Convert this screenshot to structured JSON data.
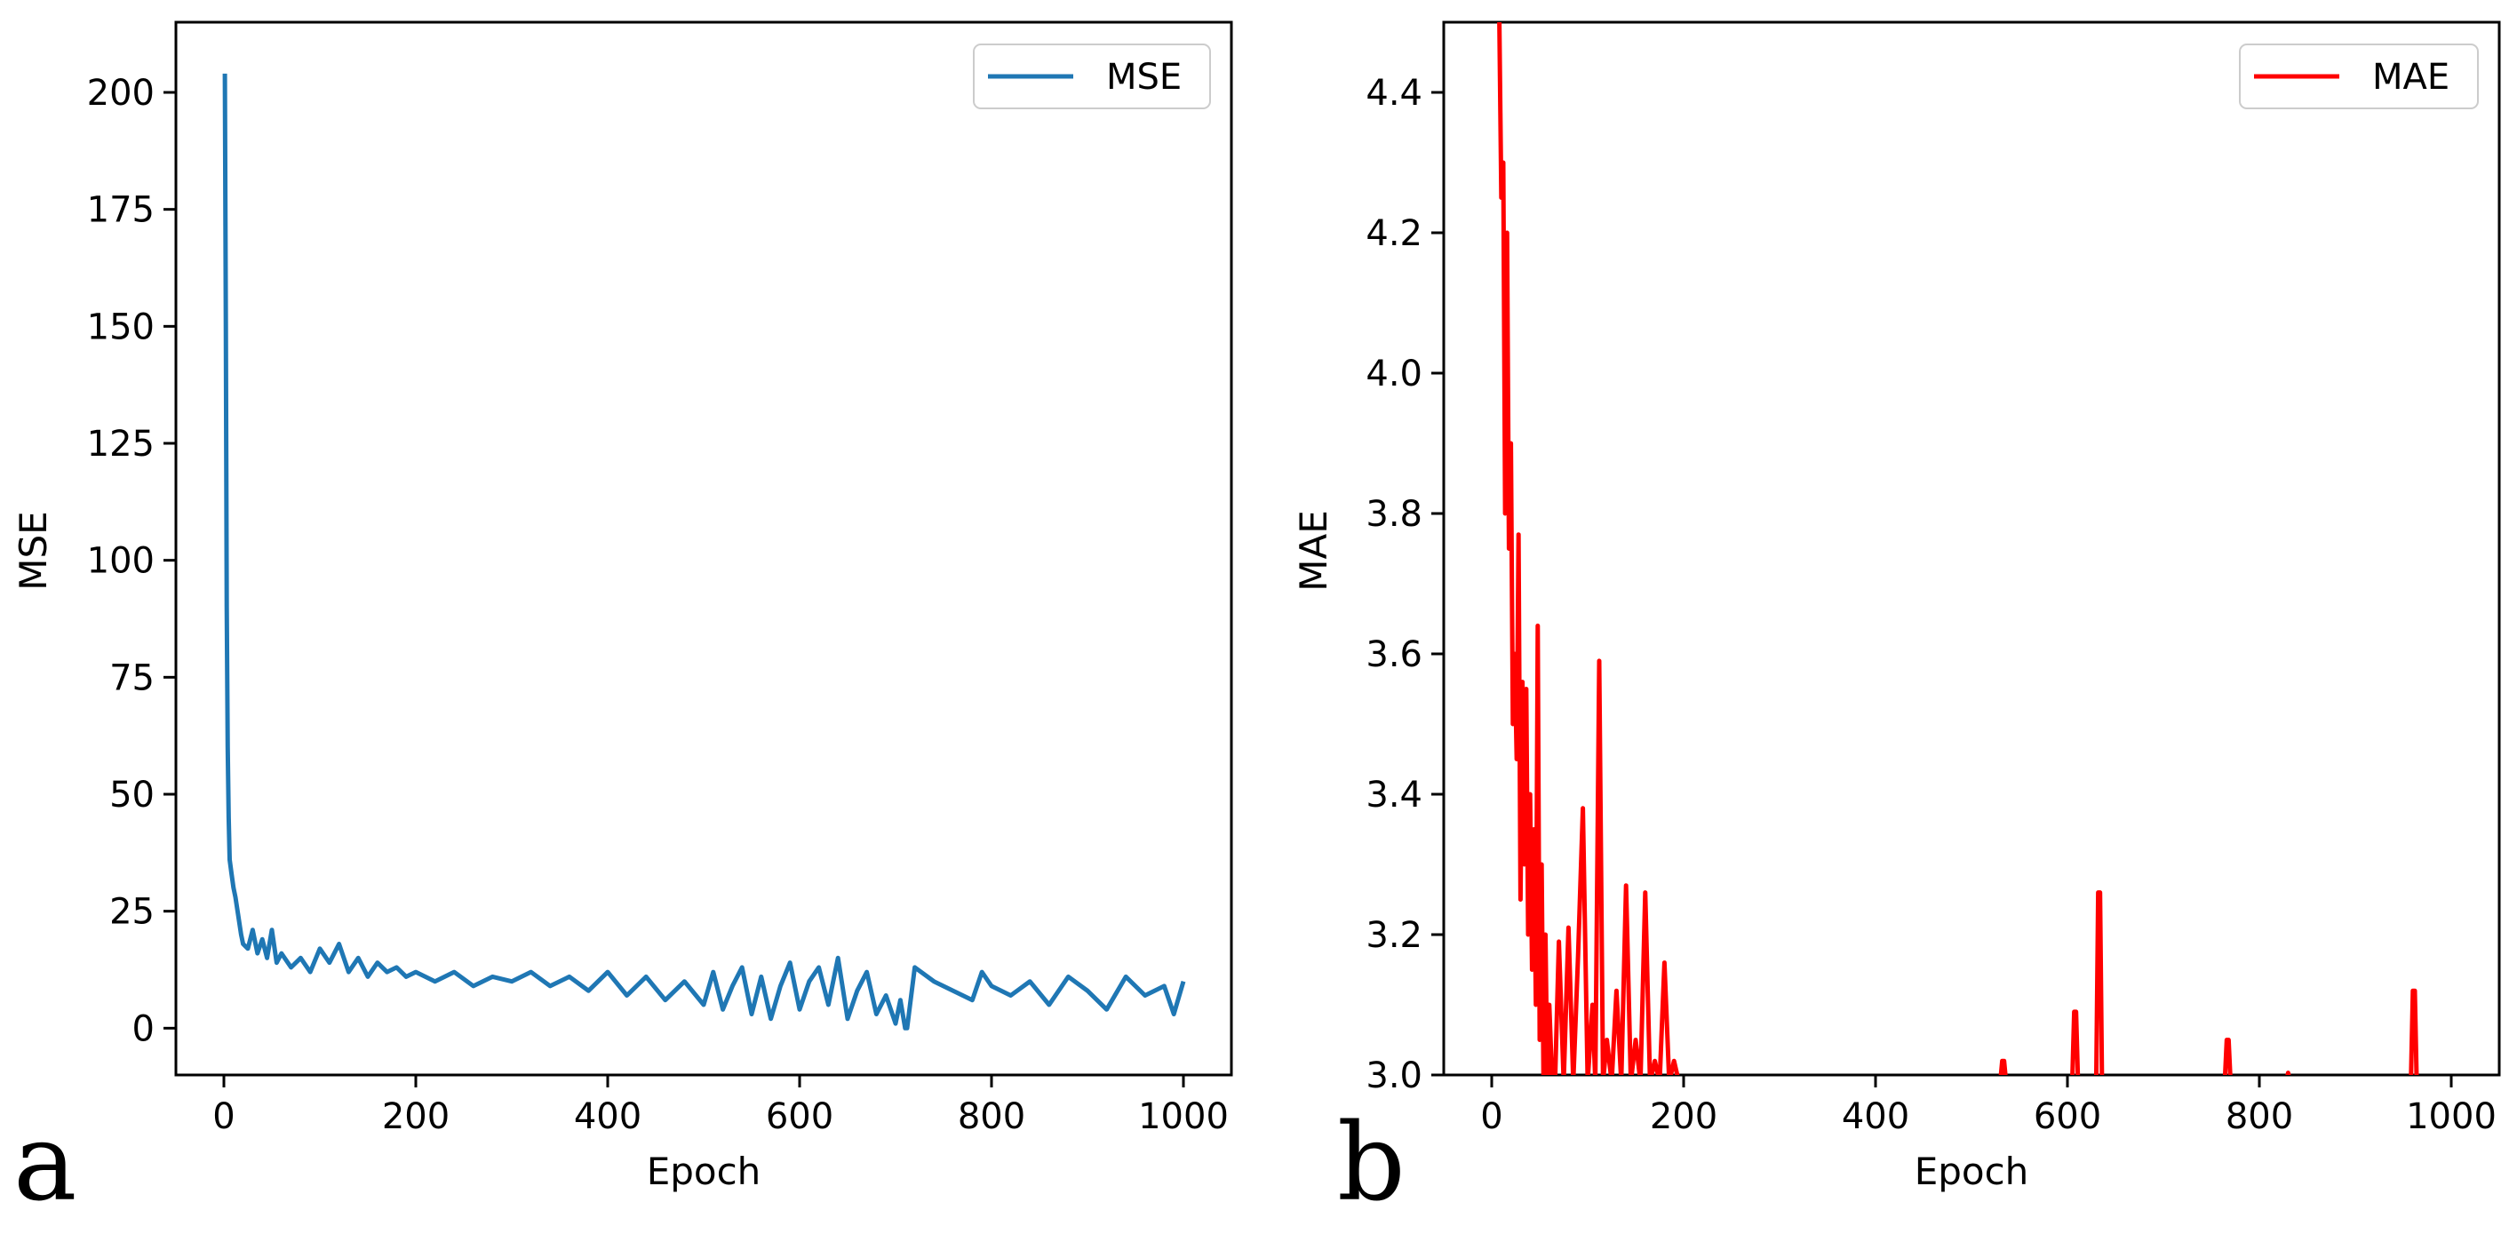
{
  "chart_data": [
    {
      "type": "line",
      "panel_letter": "a",
      "title": "",
      "xlabel": "Epoch",
      "ylabel": "MSE",
      "xlim": [
        -50,
        1050
      ],
      "ylim": [
        -10,
        215
      ],
      "xticks": [
        0,
        200,
        400,
        600,
        800,
        1000
      ],
      "yticks": [
        0,
        25,
        50,
        75,
        100,
        125,
        150,
        175,
        200
      ],
      "legend": {
        "position": "top-right",
        "entries": [
          "MSE"
        ]
      },
      "series": [
        {
          "name": "MSE",
          "color": "#1f77b4",
          "x": [
            1,
            2,
            3,
            4,
            5,
            6,
            8,
            10,
            12,
            15,
            18,
            20,
            25,
            30,
            35,
            40,
            45,
            50,
            55,
            60,
            70,
            80,
            90,
            100,
            110,
            120,
            130,
            140,
            150,
            160,
            170,
            180,
            190,
            200,
            220,
            240,
            260,
            280,
            300,
            320,
            340,
            360,
            380,
            400,
            420,
            440,
            460,
            480,
            500,
            510,
            520,
            530,
            540,
            550,
            560,
            570,
            580,
            590,
            600,
            610,
            620,
            630,
            640,
            650,
            660,
            670,
            680,
            690,
            700,
            705,
            710,
            712,
            720,
            740,
            760,
            780,
            790,
            800,
            820,
            840,
            860,
            880,
            900,
            920,
            940,
            960,
            980,
            990,
            1000
          ],
          "values": [
            204,
            150,
            90,
            60,
            45,
            36,
            33,
            30,
            28,
            24,
            20,
            18,
            17,
            21,
            16,
            19,
            15,
            21,
            14,
            16,
            13,
            15,
            12,
            17,
            14,
            18,
            12,
            15,
            11,
            14,
            12,
            13,
            11,
            12,
            10,
            12,
            9,
            11,
            10,
            12,
            9,
            11,
            8,
            12,
            7,
            11,
            6,
            10,
            5,
            12,
            4,
            9,
            13,
            3,
            11,
            2,
            9,
            14,
            4,
            10,
            13,
            5,
            15,
            2,
            8,
            12,
            3,
            7,
            1,
            6,
            0,
            0,
            13,
            10,
            8,
            6,
            12,
            9,
            7,
            10,
            5,
            11,
            8,
            4,
            11,
            7,
            9,
            3,
            10
          ]
        }
      ]
    },
    {
      "type": "line",
      "panel_letter": "b",
      "title": "",
      "xlabel": "Epoch",
      "ylabel": "MAE",
      "xlim": [
        -50,
        1050
      ],
      "ylim": [
        3.0,
        4.5
      ],
      "xticks": [
        0,
        200,
        400,
        600,
        800,
        1000
      ],
      "yticks": [
        3.0,
        3.2,
        3.4,
        3.6,
        3.8,
        4.0,
        4.2,
        4.4
      ],
      "legend": {
        "position": "top-right",
        "entries": [
          "MAE"
        ]
      },
      "series": [
        {
          "name": "MAE",
          "color": "#ff0000",
          "x": [
            8,
            10,
            12,
            14,
            16,
            18,
            20,
            22,
            24,
            26,
            28,
            30,
            32,
            34,
            36,
            38,
            40,
            42,
            44,
            46,
            48,
            50,
            52,
            54,
            56,
            58,
            60,
            63,
            66,
            70,
            75,
            80,
            85,
            90,
            95,
            100,
            105,
            108,
            112,
            116,
            120,
            125,
            130,
            135,
            140,
            145,
            150,
            155,
            160,
            165,
            170,
            175,
            180,
            185,
            190,
            195,
            530,
            532,
            534,
            536,
            605,
            607,
            609,
            611,
            630,
            632,
            634,
            636,
            764,
            766,
            768,
            770,
            828,
            830,
            832,
            958,
            960,
            962,
            964
          ],
          "values": [
            4.5,
            4.25,
            4.3,
            3.8,
            4.2,
            3.75,
            3.9,
            3.5,
            3.6,
            3.45,
            3.77,
            3.25,
            3.56,
            3.3,
            3.55,
            3.2,
            3.4,
            3.15,
            3.35,
            3.1,
            3.64,
            3.05,
            3.3,
            2.99,
            3.2,
            2.99,
            3.1,
            2.99,
            2.99,
            3.19,
            2.99,
            3.21,
            2.99,
            3.17,
            3.38,
            2.99,
            3.1,
            2.99,
            3.59,
            2.99,
            3.05,
            2.99,
            3.12,
            2.99,
            3.27,
            2.99,
            3.05,
            2.99,
            3.26,
            2.99,
            3.02,
            2.99,
            3.16,
            2.99,
            3.02,
            2.99,
            2.99,
            3.02,
            3.02,
            2.99,
            2.99,
            3.09,
            3.09,
            2.99,
            2.99,
            3.26,
            3.26,
            2.99,
            2.99,
            3.05,
            3.05,
            2.99,
            2.99,
            3.003,
            2.99,
            2.99,
            3.12,
            3.12,
            2.99
          ]
        }
      ]
    }
  ]
}
